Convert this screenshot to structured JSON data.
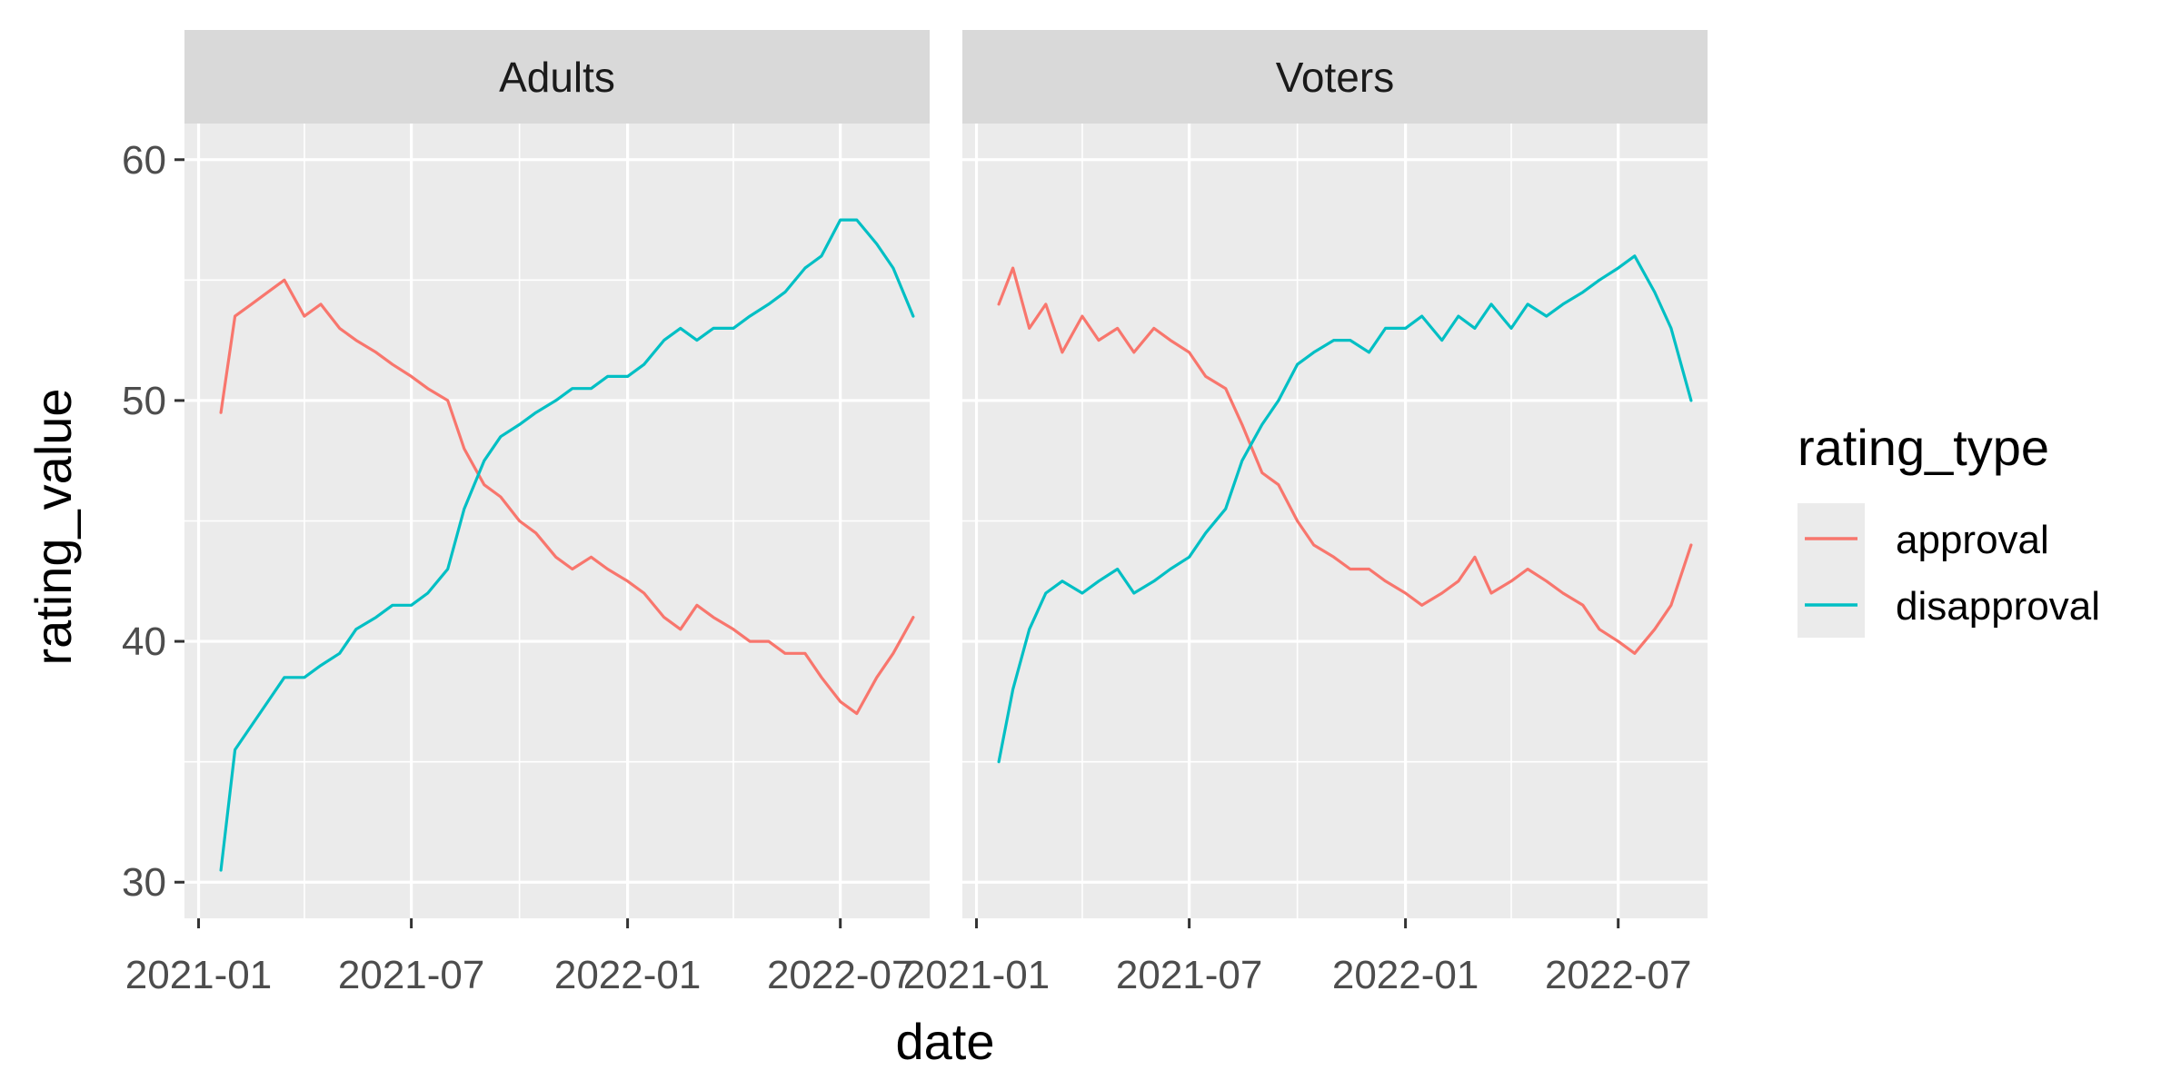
{
  "chart_data": {
    "type": "line",
    "xlabel": "date",
    "ylabel": "rating_value",
    "legend_title": "rating_type",
    "legend_position": "right",
    "grid": true,
    "x_type": "date",
    "xlim": [
      "2020-12-20",
      "2022-09-15"
    ],
    "ylim": [
      28.5,
      61.5
    ],
    "x_ticks": [
      "2021-01",
      "2021-07",
      "2022-01",
      "2022-07"
    ],
    "y_ticks": [
      30,
      40,
      50,
      60
    ],
    "colors": {
      "approval": "#F8766D",
      "disapproval": "#00BFC4"
    },
    "panels": [
      {
        "name": "Adults",
        "series": [
          {
            "name": "approval",
            "x": [
              "2021-01-20",
              "2021-02-01",
              "2021-02-15",
              "2021-03-01",
              "2021-03-15",
              "2021-04-01",
              "2021-04-15",
              "2021-05-01",
              "2021-05-15",
              "2021-06-01",
              "2021-06-15",
              "2021-07-01",
              "2021-07-15",
              "2021-08-01",
              "2021-08-15",
              "2021-09-01",
              "2021-09-15",
              "2021-10-01",
              "2021-10-15",
              "2021-11-01",
              "2021-11-15",
              "2021-12-01",
              "2021-12-15",
              "2022-01-01",
              "2022-01-15",
              "2022-02-01",
              "2022-02-15",
              "2022-03-01",
              "2022-03-15",
              "2022-04-01",
              "2022-04-15",
              "2022-05-01",
              "2022-05-15",
              "2022-06-01",
              "2022-06-15",
              "2022-07-01",
              "2022-07-15",
              "2022-08-01",
              "2022-08-15",
              "2022-09-01"
            ],
            "values": [
              49.5,
              53.5,
              54.0,
              54.5,
              55.0,
              53.5,
              54.0,
              53.0,
              52.5,
              52.0,
              51.5,
              51.0,
              50.5,
              50.0,
              48.0,
              46.5,
              46.0,
              45.0,
              44.5,
              43.5,
              43.0,
              43.5,
              43.0,
              42.5,
              42.0,
              41.0,
              40.5,
              41.5,
              41.0,
              40.5,
              40.0,
              40.0,
              39.5,
              39.5,
              38.5,
              37.5,
              37.0,
              38.5,
              39.5,
              41.0
            ]
          },
          {
            "name": "disapproval",
            "x": [
              "2021-01-20",
              "2021-02-01",
              "2021-02-15",
              "2021-03-01",
              "2021-03-15",
              "2021-04-01",
              "2021-04-15",
              "2021-05-01",
              "2021-05-15",
              "2021-06-01",
              "2021-06-15",
              "2021-07-01",
              "2021-07-15",
              "2021-08-01",
              "2021-08-15",
              "2021-09-01",
              "2021-09-15",
              "2021-10-01",
              "2021-10-15",
              "2021-11-01",
              "2021-11-15",
              "2021-12-01",
              "2021-12-15",
              "2022-01-01",
              "2022-01-15",
              "2022-02-01",
              "2022-02-15",
              "2022-03-01",
              "2022-03-15",
              "2022-04-01",
              "2022-04-15",
              "2022-05-01",
              "2022-05-15",
              "2022-06-01",
              "2022-06-15",
              "2022-07-01",
              "2022-07-15",
              "2022-08-01",
              "2022-08-15",
              "2022-09-01"
            ],
            "values": [
              30.5,
              35.5,
              36.5,
              37.5,
              38.5,
              38.5,
              39.0,
              39.5,
              40.5,
              41.0,
              41.5,
              41.5,
              42.0,
              43.0,
              45.5,
              47.5,
              48.5,
              49.0,
              49.5,
              50.0,
              50.5,
              50.5,
              51.0,
              51.0,
              51.5,
              52.5,
              53.0,
              52.5,
              53.0,
              53.0,
              53.5,
              54.0,
              54.5,
              55.5,
              56.0,
              57.5,
              57.5,
              56.5,
              55.5,
              53.5
            ]
          }
        ]
      },
      {
        "name": "Voters",
        "series": [
          {
            "name": "approval",
            "x": [
              "2021-01-20",
              "2021-02-01",
              "2021-02-15",
              "2021-03-01",
              "2021-03-15",
              "2021-04-01",
              "2021-04-15",
              "2021-05-01",
              "2021-05-15",
              "2021-06-01",
              "2021-06-15",
              "2021-07-01",
              "2021-07-15",
              "2021-08-01",
              "2021-08-15",
              "2021-09-01",
              "2021-09-15",
              "2021-10-01",
              "2021-10-15",
              "2021-11-01",
              "2021-11-15",
              "2021-12-01",
              "2021-12-15",
              "2022-01-01",
              "2022-01-15",
              "2022-02-01",
              "2022-02-15",
              "2022-03-01",
              "2022-03-15",
              "2022-04-01",
              "2022-04-15",
              "2022-05-01",
              "2022-05-15",
              "2022-06-01",
              "2022-06-15",
              "2022-07-01",
              "2022-07-15",
              "2022-08-01",
              "2022-08-15",
              "2022-09-01"
            ],
            "values": [
              54.0,
              55.5,
              53.0,
              54.0,
              52.0,
              53.5,
              52.5,
              53.0,
              52.0,
              53.0,
              52.5,
              52.0,
              51.0,
              50.5,
              49.0,
              47.0,
              46.5,
              45.0,
              44.0,
              43.5,
              43.0,
              43.0,
              42.5,
              42.0,
              41.5,
              42.0,
              42.5,
              43.5,
              42.0,
              42.5,
              43.0,
              42.5,
              42.0,
              41.5,
              40.5,
              40.0,
              39.5,
              40.5,
              41.5,
              44.0
            ]
          },
          {
            "name": "disapproval",
            "x": [
              "2021-01-20",
              "2021-02-01",
              "2021-02-15",
              "2021-03-01",
              "2021-03-15",
              "2021-04-01",
              "2021-04-15",
              "2021-05-01",
              "2021-05-15",
              "2021-06-01",
              "2021-06-15",
              "2021-07-01",
              "2021-07-15",
              "2021-08-01",
              "2021-08-15",
              "2021-09-01",
              "2021-09-15",
              "2021-10-01",
              "2021-10-15",
              "2021-11-01",
              "2021-11-15",
              "2021-12-01",
              "2021-12-15",
              "2022-01-01",
              "2022-01-15",
              "2022-02-01",
              "2022-02-15",
              "2022-03-01",
              "2022-03-15",
              "2022-04-01",
              "2022-04-15",
              "2022-05-01",
              "2022-05-15",
              "2022-06-01",
              "2022-06-15",
              "2022-07-01",
              "2022-07-15",
              "2022-08-01",
              "2022-08-15",
              "2022-09-01"
            ],
            "values": [
              35.0,
              38.0,
              40.5,
              42.0,
              42.5,
              42.0,
              42.5,
              43.0,
              42.0,
              42.5,
              43.0,
              43.5,
              44.5,
              45.5,
              47.5,
              49.0,
              50.0,
              51.5,
              52.0,
              52.5,
              52.5,
              52.0,
              53.0,
              53.0,
              53.5,
              52.5,
              53.5,
              53.0,
              54.0,
              53.0,
              54.0,
              53.5,
              54.0,
              54.5,
              55.0,
              55.5,
              56.0,
              54.5,
              53.0,
              50.0
            ]
          }
        ]
      }
    ]
  }
}
